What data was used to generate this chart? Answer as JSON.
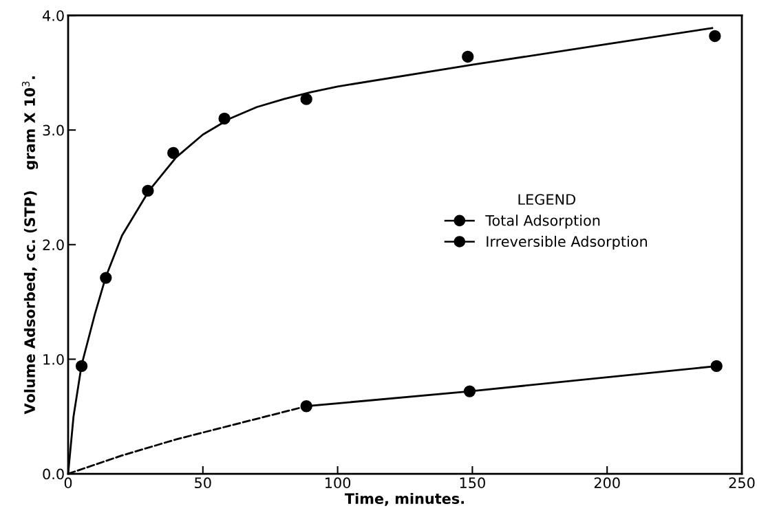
{
  "chart_data": {
    "type": "scatter",
    "xlabel": "Time, minutes.",
    "ylabel": "Volume Adsorbed, cc. (STP)    gram X 10$^{3}$.",
    "legend_title": "LEGEND",
    "legend": "right",
    "grid": false,
    "xlim": [
      0,
      250
    ],
    "ylim": [
      0,
      4.0
    ],
    "xticks": [
      0,
      50,
      100,
      150,
      200,
      250
    ],
    "yticks": [
      {
        "value": 0,
        "label": "0.0"
      },
      {
        "value": 1,
        "label": "1.0"
      },
      {
        "value": 2,
        "label": "2.0"
      },
      {
        "value": 3,
        "label": "3.0"
      },
      {
        "value": 4,
        "label": "4.0"
      }
    ],
    "series": [
      {
        "name": "Total Adsorption",
        "marker": "circle",
        "color": "#000000",
        "x": [
          5,
          14,
          29.6,
          39,
          58,
          88.4,
          148.3,
          240
        ],
        "values": [
          0.94,
          1.71,
          2.47,
          2.8,
          3.1,
          3.27,
          3.64,
          3.82
        ]
      },
      {
        "name": "Irreversible Adsorption",
        "marker": "circle",
        "color": "#000000",
        "x": [
          88.4,
          149,
          240.6
        ],
        "values": [
          0.59,
          0.72,
          0.94
        ]
      },
      {
        "type": "line",
        "line_style": "solid",
        "color": "#000000",
        "x": [
          0,
          2,
          5,
          10,
          14,
          20,
          30,
          40,
          50,
          60,
          70,
          80,
          90,
          100,
          150,
          200,
          239
        ],
        "values": [
          0,
          0.5,
          0.95,
          1.4,
          1.72,
          2.08,
          2.47,
          2.76,
          2.96,
          3.1,
          3.2,
          3.27,
          3.33,
          3.38,
          3.57,
          3.75,
          3.89
        ]
      },
      {
        "type": "line",
        "line_style": "dashed",
        "color": "#000000",
        "x": [
          0,
          20,
          40,
          60,
          88.4
        ],
        "values": [
          0,
          0.16,
          0.3,
          0.42,
          0.59
        ]
      },
      {
        "type": "line",
        "line_style": "solid",
        "color": "#000000",
        "x": [
          88.4,
          149,
          240.6
        ],
        "values": [
          0.59,
          0.72,
          0.94
        ]
      }
    ]
  }
}
